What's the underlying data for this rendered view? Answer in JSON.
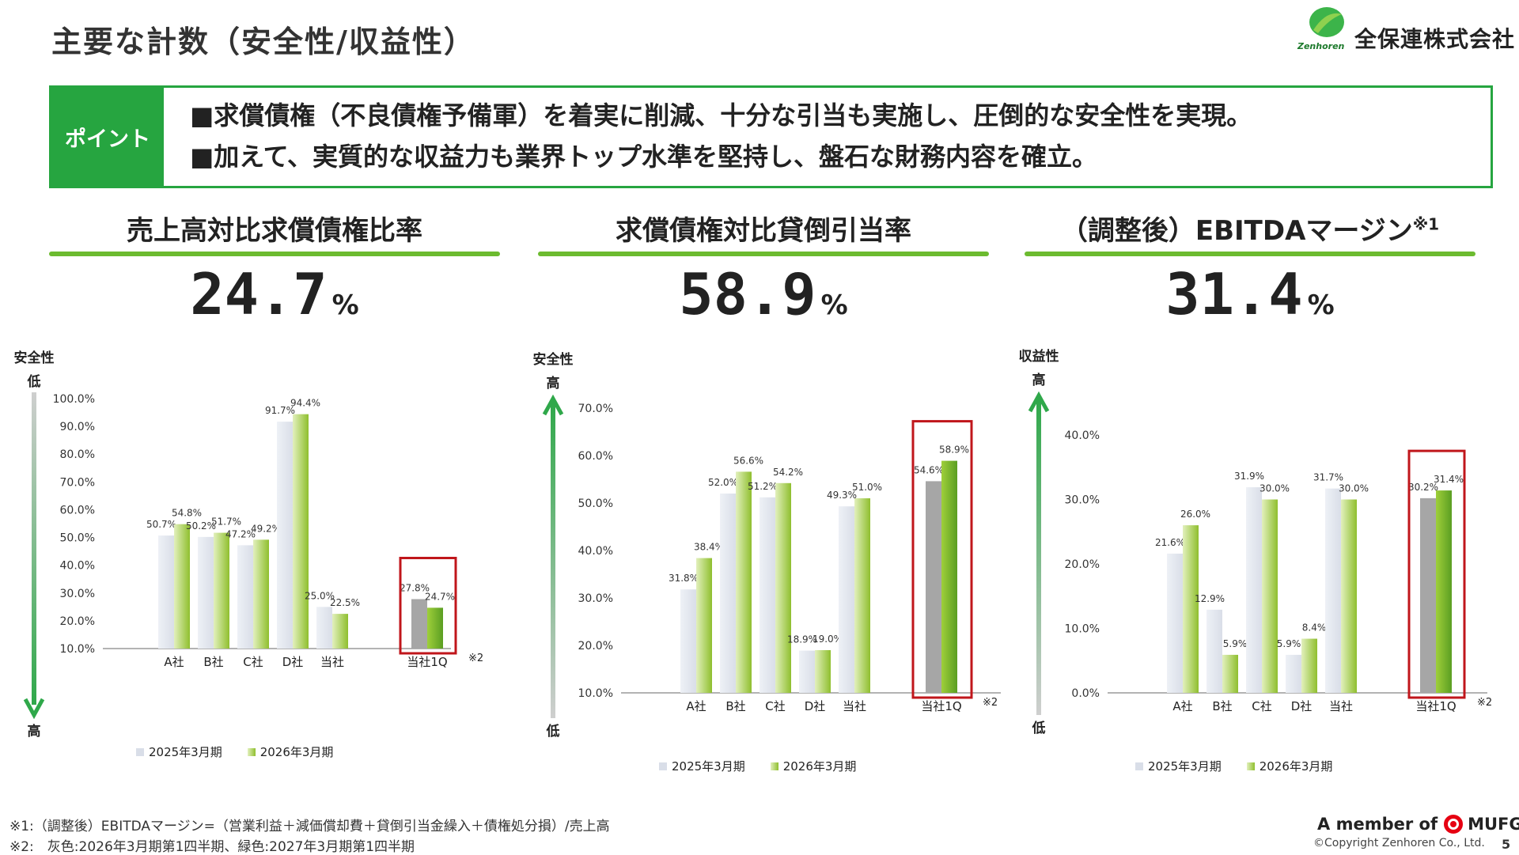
{
  "header": {
    "title": "主要な計数（安全性/収益性）",
    "company_name": "全保連株式会社",
    "logo_word": "Zenhoren"
  },
  "points": {
    "label": "ポイント",
    "lines": [
      "■求償債権（不良債権予備軍）を着実に削減、十分な引当も実施し、圧倒的な安全性を実現。",
      "■加えて、実質的な収益力も業界トップ水準を堅持し、盤石な財務内容を確立。"
    ]
  },
  "kpis": [
    {
      "title": "売上高対比求償債権比率",
      "superscript": "",
      "value": "24.7",
      "unit": "%"
    },
    {
      "title": "求償債権対比貸倒引当率",
      "superscript": "",
      "value": "58.9",
      "unit": "%"
    },
    {
      "title": "（調整後）EBITDAマージン",
      "superscript": "※1",
      "value": "31.4",
      "unit": "%"
    }
  ],
  "axis_notes": [
    {
      "top_label": "安全性",
      "top_value": "低",
      "bottom_value": "高"
    },
    {
      "top_label": "安全性",
      "top_value": "高",
      "bottom_value": "低"
    },
    {
      "top_label": "収益性",
      "top_value": "高",
      "bottom_value": "低"
    }
  ],
  "legend": {
    "series1": "2025年3月期",
    "series2": "2026年3月期"
  },
  "highlight_note": "※2",
  "colors": {
    "brand_green": "#26a540",
    "rule_green": "#6cbb2f",
    "bar_2025": "#d9dee8",
    "bar_2026_light": "#e2f0bd",
    "bar_2026_dark": "#8fbf2e",
    "own_1q_gray": "#a6a6a6",
    "own_1q_green": "#5a9e22",
    "highlight_red": "#c0161b",
    "arrow_green": "#2fa84a",
    "arrow_gray": "#b5b5b5"
  },
  "chart_data": [
    {
      "type": "bar",
      "categories": [
        "A社",
        "B社",
        "C社",
        "D社",
        "当社",
        "当社1Q"
      ],
      "series": [
        {
          "name": "2025年3月期",
          "values": [
            50.7,
            50.2,
            47.2,
            91.7,
            25.0,
            27.8
          ]
        },
        {
          "name": "2026年3月期",
          "values": [
            54.8,
            51.7,
            49.2,
            94.4,
            22.5,
            24.7
          ]
        }
      ],
      "data_labels": [
        [
          "50.7%",
          "50.2%",
          "47.2%",
          "91.7%",
          "25.0%",
          "27.8%"
        ],
        [
          "54.8%",
          "51.7%",
          "49.2%",
          "94.4%",
          "22.5%",
          "24.7%"
        ]
      ],
      "yticks": [
        "10.0%",
        "20.0%",
        "30.0%",
        "40.0%",
        "50.0%",
        "60.0%",
        "70.0%",
        "80.0%",
        "90.0%",
        "100.0%"
      ],
      "ylim": [
        10,
        100
      ],
      "highlight_category": "当社1Q",
      "legend_position": "bottom"
    },
    {
      "type": "bar",
      "categories": [
        "A社",
        "B社",
        "C社",
        "D社",
        "当社",
        "当社1Q"
      ],
      "series": [
        {
          "name": "2025年3月期",
          "values": [
            31.8,
            52.0,
            51.2,
            18.9,
            49.3,
            54.6
          ]
        },
        {
          "name": "2026年3月期",
          "values": [
            38.4,
            56.6,
            54.2,
            19.0,
            51.0,
            58.9
          ]
        }
      ],
      "data_labels": [
        [
          "31.8%",
          "52.0%",
          "51.2%",
          "18.9%",
          "49.3%",
          "54.6%"
        ],
        [
          "38.4%",
          "56.6%",
          "54.2%",
          "19.0%",
          "51.0%",
          "58.9%"
        ]
      ],
      "yticks": [
        "10.0%",
        "20.0%",
        "30.0%",
        "40.0%",
        "50.0%",
        "60.0%",
        "70.0%"
      ],
      "ylim": [
        10,
        70
      ],
      "highlight_category": "当社1Q",
      "legend_position": "bottom"
    },
    {
      "type": "bar",
      "categories": [
        "A社",
        "B社",
        "C社",
        "D社",
        "当社",
        "当社1Q"
      ],
      "series": [
        {
          "name": "2025年3月期",
          "values": [
            21.6,
            12.9,
            31.9,
            5.9,
            31.7,
            30.2
          ]
        },
        {
          "name": "2026年3月期",
          "values": [
            26.0,
            5.9,
            30.0,
            8.4,
            30.0,
            31.4
          ]
        }
      ],
      "data_labels": [
        [
          "21.6%",
          "12.9%",
          "31.9%",
          "5.9%",
          "31.7%",
          "30.2%"
        ],
        [
          "26.0%",
          "5.9%",
          "30.0%",
          "8.4%",
          "30.0%",
          "31.4%"
        ]
      ],
      "yticks": [
        "0.0%",
        "10.0%",
        "20.0%",
        "30.0%",
        "40.0%"
      ],
      "ylim": [
        0,
        40
      ],
      "highlight_category": "当社1Q",
      "legend_position": "bottom"
    }
  ],
  "footnotes": [
    "※1:（調整後）EBITDAマージン=（営業利益＋減価償却費＋貸倒引当金繰入＋債権処分損）/売上高",
    "※2:　灰色:2026年3月期第1四半期、緑色:2027年3月期第1四半期"
  ],
  "footer": {
    "member_text": "A member of",
    "mufg_text": "MUFG",
    "copyright": "©Copyright Zenhoren Co., Ltd.",
    "page_number": "5"
  }
}
